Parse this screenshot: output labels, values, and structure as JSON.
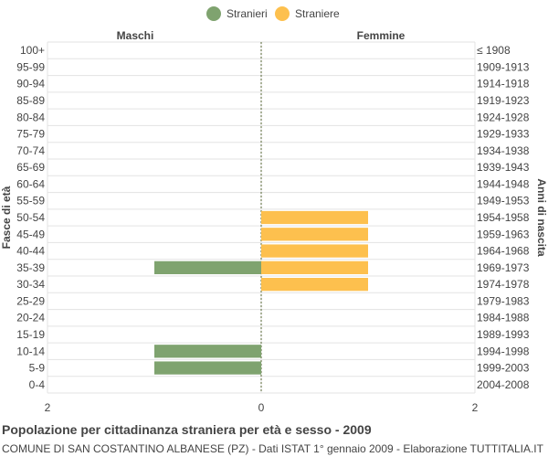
{
  "chart_data": {
    "type": "bar",
    "orientation": "horizontal-pyramid",
    "title": "Popolazione per cittadinanza straniera per età e sesso - 2009",
    "subtitle": "COMUNE DI SAN COSTANTINO ALBANESE (PZ) - Dati ISTAT 1° gennaio 2009 - Elaborazione TUTTITALIA.IT",
    "ylabel_left": "Fasce di età",
    "ylabel_right": "Anni di nascita",
    "left_header": "Maschi",
    "right_header": "Femmine",
    "xlim": [
      -2,
      2
    ],
    "x_tick_labels": [
      "2",
      "0",
      "2"
    ],
    "x_tick_values": [
      -2,
      0,
      2
    ],
    "grid": true,
    "legend_position": "top-center",
    "categories": [
      "100+",
      "95-99",
      "90-94",
      "85-89",
      "80-84",
      "75-79",
      "70-74",
      "65-69",
      "60-64",
      "55-59",
      "50-54",
      "45-49",
      "40-44",
      "35-39",
      "30-34",
      "25-29",
      "20-24",
      "15-19",
      "10-14",
      "5-9",
      "0-4"
    ],
    "birth_years": [
      "≤ 1908",
      "1909-1913",
      "1914-1918",
      "1919-1923",
      "1924-1928",
      "1929-1933",
      "1934-1938",
      "1939-1943",
      "1944-1948",
      "1949-1953",
      "1954-1958",
      "1959-1963",
      "1964-1968",
      "1969-1973",
      "1974-1978",
      "1979-1983",
      "1984-1988",
      "1989-1993",
      "1994-1998",
      "1999-2003",
      "2004-2008"
    ],
    "series": [
      {
        "name": "Stranieri",
        "color": "#7fa36f",
        "side": "left",
        "values": [
          0,
          0,
          0,
          0,
          0,
          0,
          0,
          0,
          0,
          0,
          0,
          0,
          0,
          1,
          0,
          0,
          0,
          0,
          1,
          1,
          0
        ]
      },
      {
        "name": "Straniere",
        "color": "#fdc04e",
        "side": "right",
        "values": [
          0,
          0,
          0,
          0,
          0,
          0,
          0,
          0,
          0,
          0,
          1,
          1,
          1,
          1,
          1,
          0,
          0,
          0,
          0,
          0,
          0
        ]
      }
    ]
  }
}
